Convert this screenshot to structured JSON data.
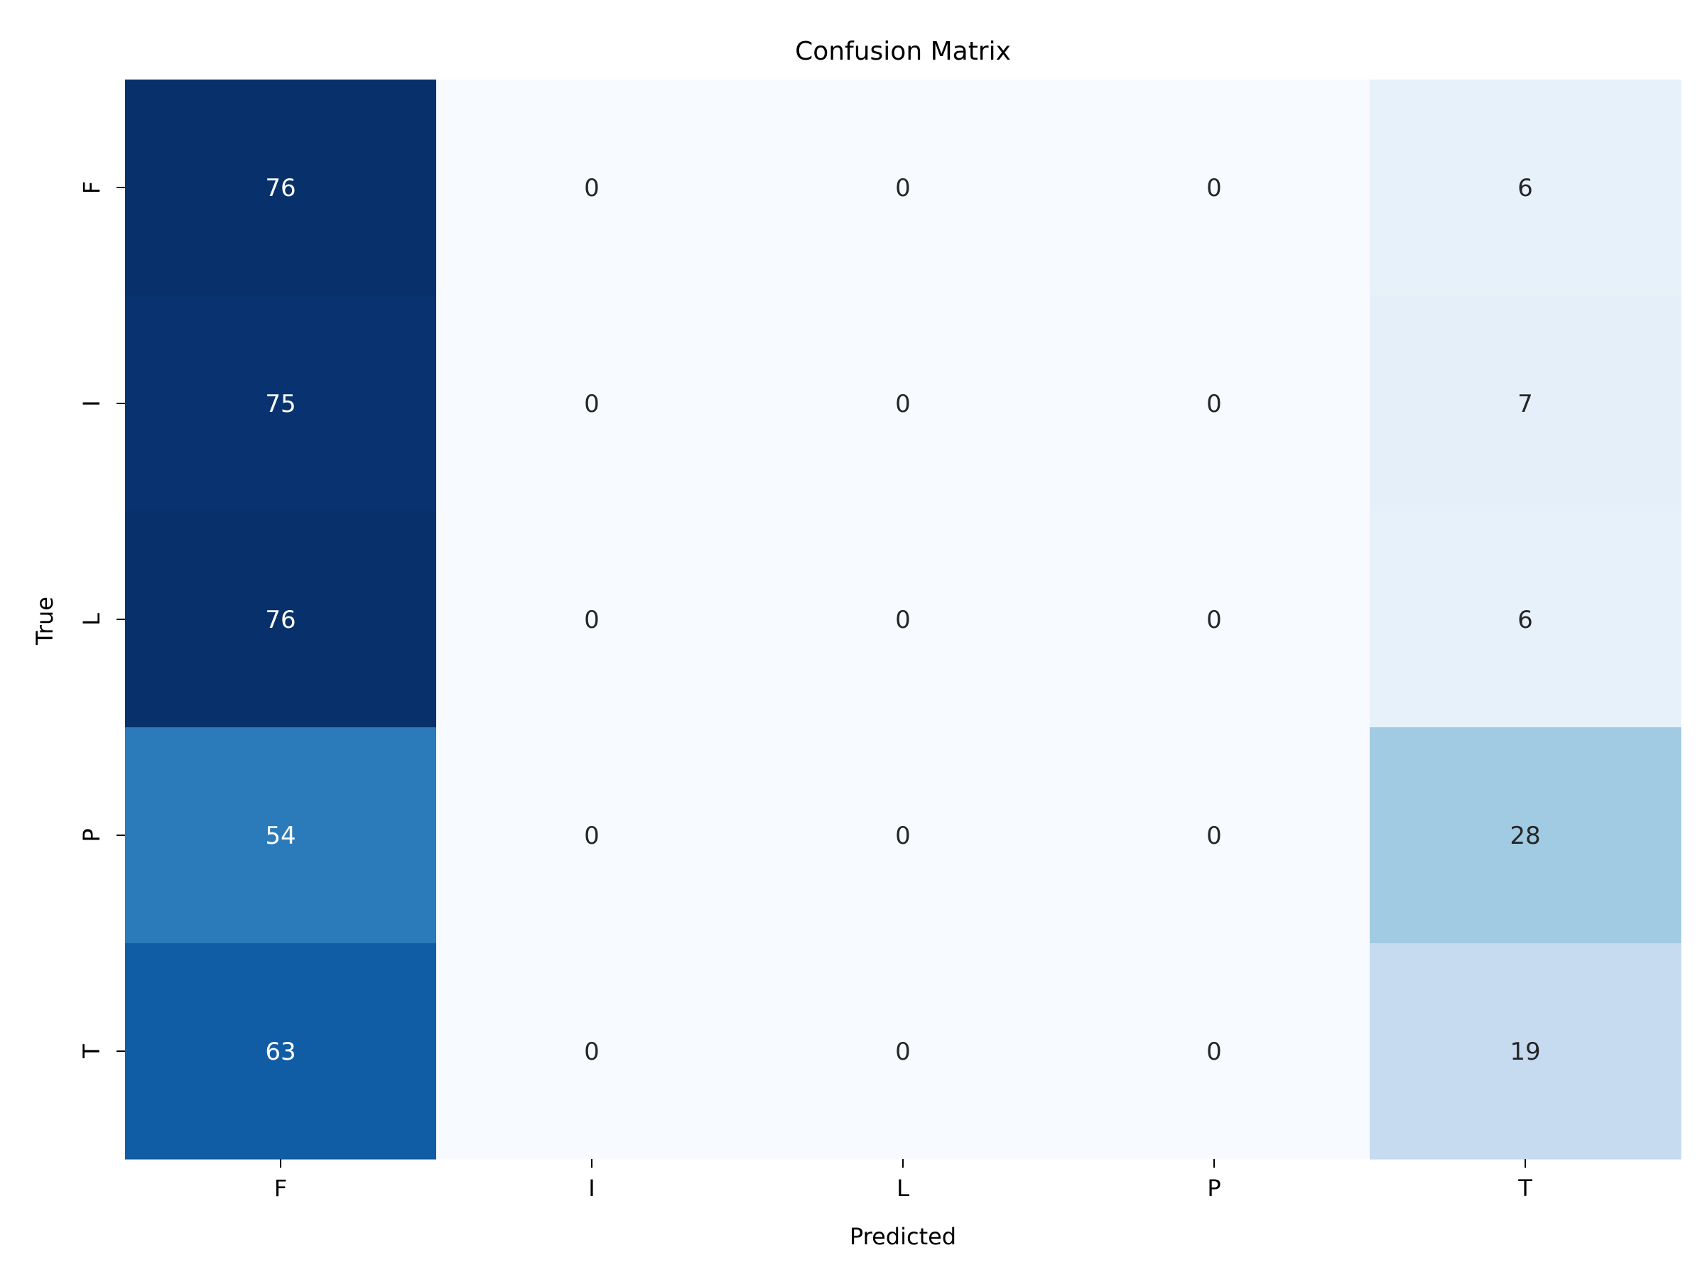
{
  "chart_data": {
    "type": "heatmap",
    "title": "Confusion Matrix",
    "xlabel": "Predicted",
    "ylabel": "True",
    "x_categories": [
      "F",
      "I",
      "L",
      "P",
      "T"
    ],
    "y_categories": [
      "F",
      "I",
      "L",
      "P",
      "T"
    ],
    "values": [
      [
        76,
        0,
        0,
        0,
        6
      ],
      [
        75,
        0,
        0,
        0,
        7
      ],
      [
        76,
        0,
        0,
        0,
        6
      ],
      [
        54,
        0,
        0,
        0,
        28
      ],
      [
        63,
        0,
        0,
        0,
        19
      ]
    ],
    "colormap": "Blues",
    "value_range": [
      0,
      76
    ],
    "colorbar": false,
    "grid": false
  }
}
